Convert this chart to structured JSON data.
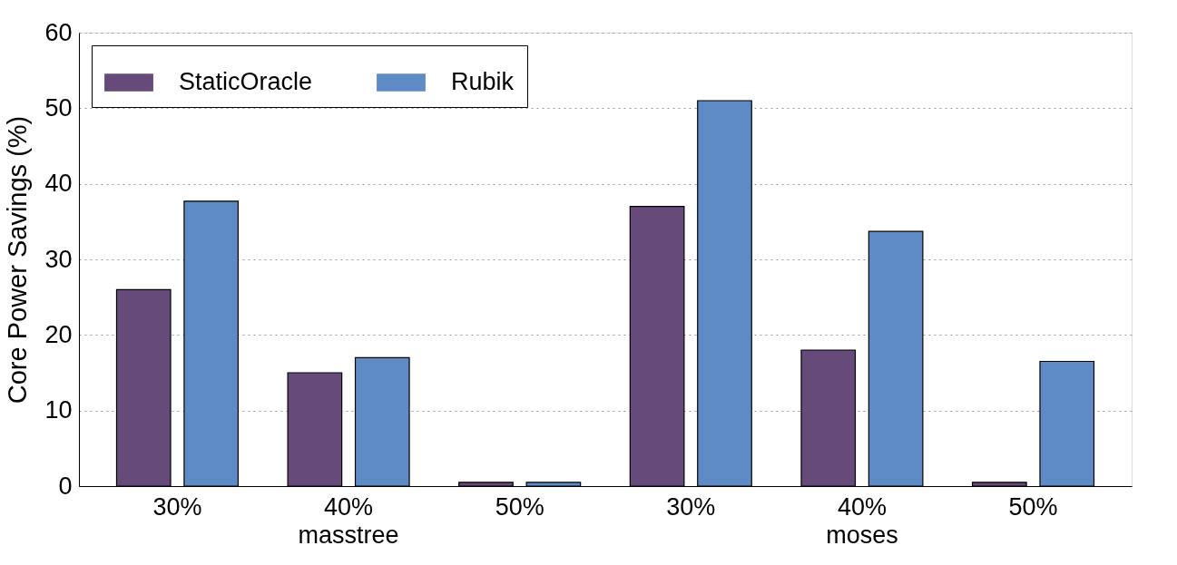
{
  "chart_data": {
    "type": "bar",
    "ylabel": "Core Power Savings (%)",
    "categories": [
      "30%",
      "40%\nmasstree",
      "50%",
      "30%",
      "40%\nmoses",
      "50%"
    ],
    "series": [
      {
        "name": "StaticOracle",
        "color": "#654a7a",
        "values": [
          26,
          15,
          0.5,
          37,
          18,
          0.5
        ]
      },
      {
        "name": "Rubik",
        "color": "#5e8bc5",
        "values": [
          37.7,
          17,
          0.5,
          51,
          33.7,
          16.5
        ]
      }
    ],
    "ylim": [
      0,
      60
    ],
    "yticks": [
      0,
      10,
      20,
      30,
      40,
      50,
      60
    ],
    "grid": "y",
    "legend": "top left"
  }
}
